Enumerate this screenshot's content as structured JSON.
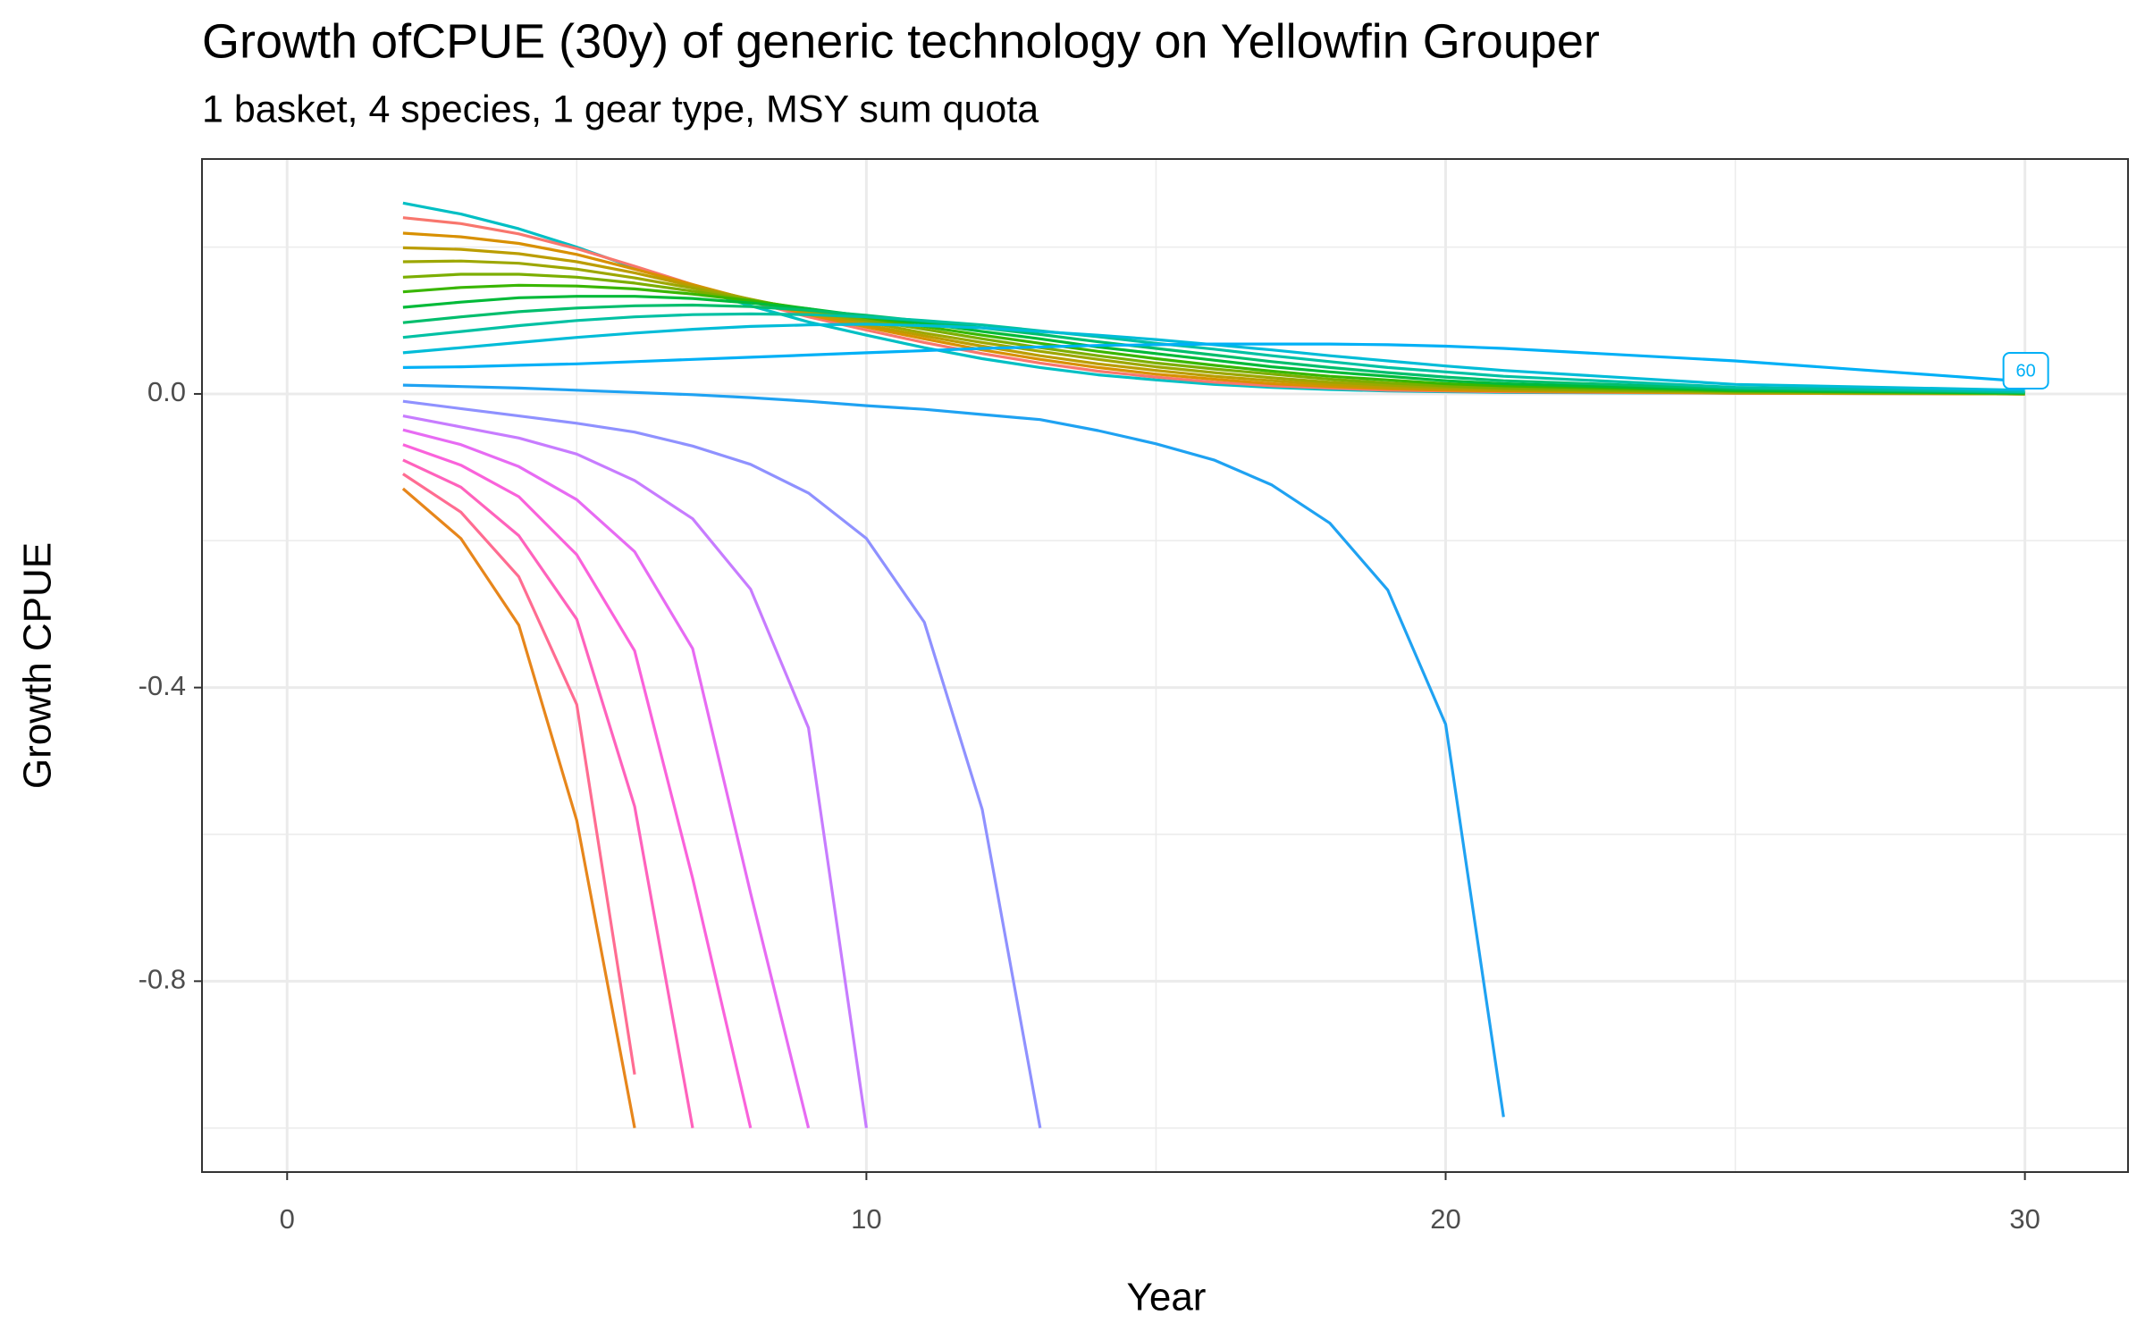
{
  "chart_data": {
    "type": "line",
    "title": "Growth ofCPUE (30y) of generic technology on Yellowfin Grouper",
    "subtitle": "1 basket, 4 species, 1 gear type, MSY sum quota",
    "x_label": "Year",
    "y_label": "Growth CPUE",
    "xlim": [
      -1.47,
      31.78
    ],
    "ylim": [
      -1.06,
      0.32
    ],
    "xticks": [
      0,
      10,
      20,
      30
    ],
    "yticks": [
      {
        "value": 0,
        "label": "0.0"
      },
      -0.4,
      -0.8
    ],
    "minor_xticks": [
      5,
      15,
      25
    ],
    "minor_yticks": [
      0.2,
      -0.2,
      -0.6,
      -1.0
    ],
    "grid": true,
    "x": [
      2,
      3,
      4,
      5,
      6,
      7,
      8,
      9,
      10,
      11,
      12,
      13,
      14,
      15,
      16,
      17,
      18,
      19,
      20,
      21,
      25,
      30
    ],
    "series": [
      {
        "color": "#00BFC4",
        "values": [
          0.26,
          0.245,
          0.225,
          0.2,
          0.172,
          0.145,
          0.12,
          0.098,
          0.08,
          0.063,
          0.048,
          0.036,
          0.026,
          0.019,
          0.013,
          0.009,
          0.006,
          0.004,
          0.003,
          0.002,
          0.001,
          0.0
        ]
      },
      {
        "color": "#F8766D",
        "values": [
          0.24,
          0.232,
          0.218,
          0.198,
          0.174,
          0.149,
          0.126,
          0.105,
          0.087,
          0.07,
          0.055,
          0.042,
          0.031,
          0.023,
          0.016,
          0.011,
          0.008,
          0.005,
          0.004,
          0.003,
          0.001,
          0.0
        ]
      },
      {
        "color": "#D89000",
        "values": [
          0.219,
          0.214,
          0.205,
          0.19,
          0.17,
          0.149,
          0.128,
          0.108,
          0.091,
          0.075,
          0.06,
          0.047,
          0.036,
          0.027,
          0.02,
          0.014,
          0.01,
          0.007,
          0.005,
          0.004,
          0.001,
          0.0
        ]
      },
      {
        "color": "#BB9D00",
        "values": [
          0.199,
          0.197,
          0.191,
          0.18,
          0.165,
          0.147,
          0.129,
          0.111,
          0.094,
          0.079,
          0.065,
          0.052,
          0.041,
          0.032,
          0.024,
          0.018,
          0.013,
          0.009,
          0.007,
          0.005,
          0.002,
          0.0
        ]
      },
      {
        "color": "#9DA700",
        "values": [
          0.18,
          0.181,
          0.178,
          0.17,
          0.158,
          0.144,
          0.129,
          0.113,
          0.098,
          0.083,
          0.07,
          0.058,
          0.047,
          0.037,
          0.029,
          0.022,
          0.016,
          0.012,
          0.009,
          0.007,
          0.002,
          0.0
        ]
      },
      {
        "color": "#7CAE00",
        "values": [
          0.159,
          0.163,
          0.163,
          0.159,
          0.151,
          0.14,
          0.128,
          0.115,
          0.101,
          0.088,
          0.075,
          0.063,
          0.052,
          0.042,
          0.034,
          0.027,
          0.02,
          0.015,
          0.011,
          0.008,
          0.003,
          0.0
        ]
      },
      {
        "color": "#39B600",
        "values": [
          0.139,
          0.145,
          0.148,
          0.147,
          0.143,
          0.136,
          0.127,
          0.116,
          0.104,
          0.092,
          0.08,
          0.069,
          0.058,
          0.048,
          0.039,
          0.031,
          0.024,
          0.019,
          0.014,
          0.011,
          0.004,
          0.001
        ]
      },
      {
        "color": "#00BA38",
        "values": [
          0.118,
          0.125,
          0.131,
          0.133,
          0.133,
          0.13,
          0.124,
          0.116,
          0.106,
          0.096,
          0.085,
          0.075,
          0.064,
          0.055,
          0.046,
          0.037,
          0.03,
          0.024,
          0.018,
          0.014,
          0.005,
          0.001
        ]
      },
      {
        "color": "#00BE6C",
        "values": [
          0.097,
          0.105,
          0.112,
          0.117,
          0.12,
          0.121,
          0.119,
          0.114,
          0.107,
          0.099,
          0.09,
          0.081,
          0.071,
          0.062,
          0.053,
          0.044,
          0.036,
          0.029,
          0.023,
          0.018,
          0.007,
          0.002
        ]
      },
      {
        "color": "#00C1A3",
        "values": [
          0.077,
          0.085,
          0.093,
          0.1,
          0.105,
          0.108,
          0.109,
          0.108,
          0.105,
          0.1,
          0.094,
          0.086,
          0.078,
          0.069,
          0.061,
          0.052,
          0.044,
          0.036,
          0.03,
          0.024,
          0.009,
          0.003
        ]
      },
      {
        "color": "#00BCD8",
        "values": [
          0.056,
          0.063,
          0.07,
          0.077,
          0.083,
          0.088,
          0.092,
          0.094,
          0.095,
          0.093,
          0.09,
          0.085,
          0.08,
          0.074,
          0.067,
          0.06,
          0.052,
          0.045,
          0.038,
          0.032,
          0.013,
          0.005
        ]
      },
      {
        "color": "#00B0F6",
        "end_label": "60",
        "values": [
          0.036,
          0.037,
          0.039,
          0.041,
          0.044,
          0.047,
          0.05,
          0.053,
          0.056,
          0.059,
          0.062,
          0.064,
          0.066,
          0.067,
          0.068,
          0.068,
          0.068,
          0.067,
          0.065,
          0.062,
          0.045,
          0.017
        ]
      },
      {
        "color": "#1FA2F2",
        "values": [
          0.012,
          0.01,
          0.008,
          0.005,
          0.002,
          -0.001,
          -0.005,
          -0.01,
          -0.016,
          -0.021,
          -0.028,
          -0.035,
          -0.05,
          -0.068,
          -0.09,
          -0.124,
          -0.176,
          -0.267,
          -0.45,
          -0.985,
          null,
          null
        ]
      },
      {
        "color": "#8F91FF",
        "values": [
          -0.01,
          -0.02,
          -0.03,
          -0.04,
          -0.052,
          -0.071,
          -0.096,
          -0.135,
          -0.197,
          -0.311,
          -0.566,
          -1.0,
          null,
          null,
          null,
          null,
          null,
          null,
          null,
          null,
          null,
          null
        ]
      },
      {
        "color": "#C77CFF",
        "values": [
          -0.03,
          -0.045,
          -0.06,
          -0.082,
          -0.118,
          -0.17,
          -0.266,
          -0.455,
          -1.0,
          null,
          null,
          null,
          null,
          null,
          null,
          null,
          null,
          null,
          null,
          null,
          null,
          null
        ]
      },
      {
        "color": "#E76BF3",
        "values": [
          -0.049,
          -0.069,
          -0.099,
          -0.144,
          -0.215,
          -0.347,
          -0.68,
          -1.0,
          null,
          null,
          null,
          null,
          null,
          null,
          null,
          null,
          null,
          null,
          null,
          null,
          null,
          null
        ]
      },
      {
        "color": "#FA62DB",
        "values": [
          -0.069,
          -0.097,
          -0.14,
          -0.219,
          -0.35,
          -0.66,
          -1.0,
          null,
          null,
          null,
          null,
          null,
          null,
          null,
          null,
          null,
          null,
          null,
          null,
          null,
          null,
          null
        ]
      },
      {
        "color": "#FF62BC",
        "values": [
          -0.09,
          -0.127,
          -0.193,
          -0.307,
          -0.562,
          -1.0,
          null,
          null,
          null,
          null,
          null,
          null,
          null,
          null,
          null,
          null,
          null,
          null,
          null,
          null,
          null,
          null
        ]
      },
      {
        "color": "#FF6C91",
        "values": [
          -0.109,
          -0.161,
          -0.249,
          -0.423,
          -0.927,
          null,
          null,
          null,
          null,
          null,
          null,
          null,
          null,
          null,
          null,
          null,
          null,
          null,
          null,
          null,
          null,
          null
        ]
      },
      {
        "color": "#E7861B",
        "values": [
          -0.129,
          -0.197,
          -0.315,
          -0.581,
          -1.0,
          null,
          null,
          null,
          null,
          null,
          null,
          null,
          null,
          null,
          null,
          null,
          null,
          null,
          null,
          null,
          null,
          null
        ]
      }
    ]
  }
}
